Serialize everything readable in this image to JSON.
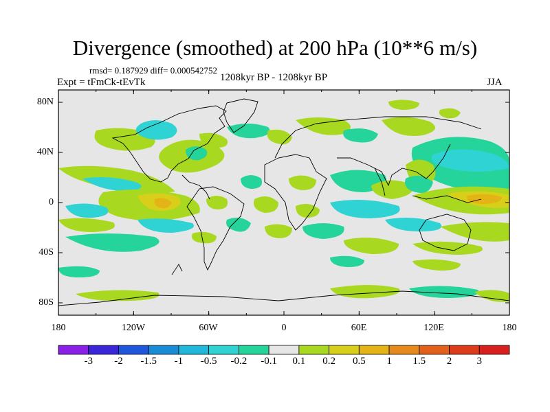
{
  "title": "Divergence (smoothed) at 200 hPa (10**6 m/s)",
  "stats": "rmsd= 0.187929 diff= 0.000542752",
  "experiment": "Expt = tFmCk-tEvTk",
  "period": "1208kyr BP - 1208kyr BP",
  "season": "JJA",
  "axes": {
    "y_ticks": [
      "80N",
      "40N",
      "0",
      "40S",
      "80S"
    ],
    "x_ticks": [
      "180",
      "120W",
      "60W",
      "0",
      "60E",
      "120E",
      "180"
    ]
  },
  "colorbar": {
    "labels": [
      "-3",
      "-2",
      "-1.5",
      "-1",
      "-0.5",
      "-0.2",
      "-0.1",
      "0.1",
      "0.2",
      "0.5",
      "1",
      "1.5",
      "2",
      "3"
    ],
    "colors": [
      "#8a1fe6",
      "#3a26d8",
      "#1f56db",
      "#1a8cd6",
      "#22b8dc",
      "#2fd3d3",
      "#25d49a",
      "#e6e6e6",
      "#a8d81f",
      "#d7cf19",
      "#e4b417",
      "#e68a1b",
      "#e25f1c",
      "#dd3b1a",
      "#d81f1f"
    ]
  },
  "map_fields": {
    "land_fill": "#e6e6e6",
    "positive_colors": [
      "#a8d81f",
      "#d7cf19",
      "#e4b417",
      "#e68a1b"
    ],
    "negative_colors": [
      "#25d49a",
      "#2fd3d3",
      "#22b8dc"
    ]
  }
}
